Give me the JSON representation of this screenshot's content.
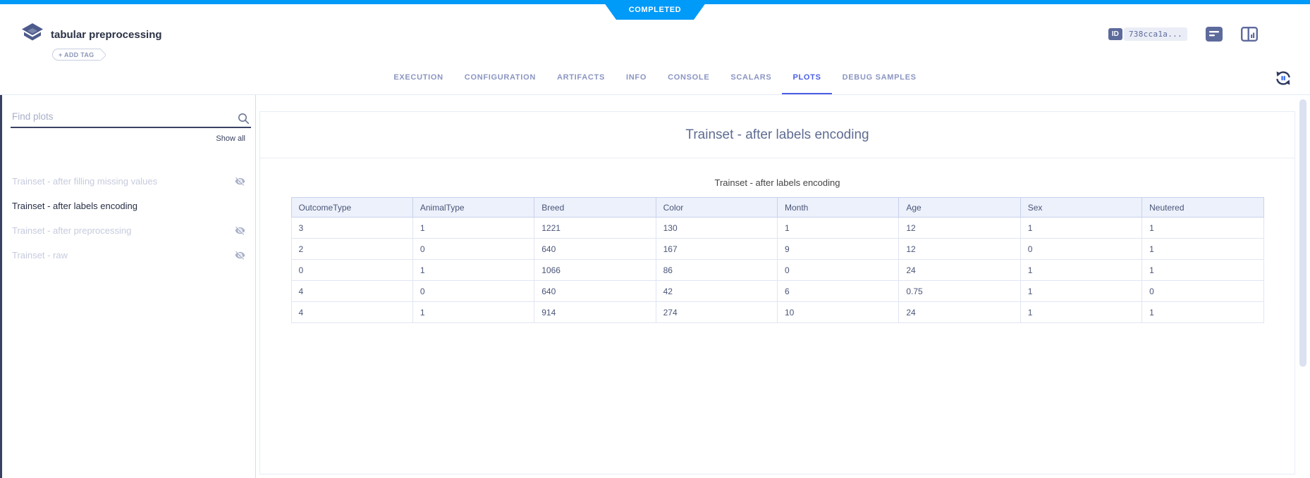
{
  "status_badge": "COMPLETED",
  "colors": {
    "top_bar": "#009af9",
    "active_tab": "#4a5fe5",
    "dark_navy": "#384161",
    "table_header_bg": "#edf1fb"
  },
  "header": {
    "title": "tabular preprocessing",
    "add_tag": "+ ADD TAG",
    "id_badge": "ID",
    "id_value": "738cca1a..."
  },
  "tabs": {
    "items": [
      "EXECUTION",
      "CONFIGURATION",
      "ARTIFACTS",
      "INFO",
      "CONSOLE",
      "SCALARS",
      "PLOTS",
      "DEBUG SAMPLES"
    ],
    "active": "PLOTS"
  },
  "sidebar": {
    "search_placeholder": "Find plots",
    "show_all": "Show all",
    "plots": [
      {
        "label": "Trainset - after filling missing values",
        "hidden": true,
        "selected": false
      },
      {
        "label": "Trainset - after labels encoding",
        "hidden": false,
        "selected": true
      },
      {
        "label": "Trainset - after preprocessing",
        "hidden": true,
        "selected": false
      },
      {
        "label": "Trainset - raw",
        "hidden": true,
        "selected": false
      }
    ]
  },
  "main": {
    "group_title": "Trainset - after labels encoding",
    "plot_title": "Trainset - after labels encoding",
    "table": {
      "headers": [
        "OutcomeType",
        "AnimalType",
        "Breed",
        "Color",
        "Month",
        "Age",
        "Sex",
        "Neutered"
      ],
      "rows": [
        [
          "3",
          "1",
          "1221",
          "130",
          "1",
          "12",
          "1",
          "1"
        ],
        [
          "2",
          "0",
          "640",
          "167",
          "9",
          "12",
          "0",
          "1"
        ],
        [
          "0",
          "1",
          "1066",
          "86",
          "0",
          "24",
          "1",
          "1"
        ],
        [
          "4",
          "0",
          "640",
          "42",
          "6",
          "0.75",
          "1",
          "0"
        ],
        [
          "4",
          "1",
          "914",
          "274",
          "10",
          "24",
          "1",
          "1"
        ]
      ]
    }
  }
}
